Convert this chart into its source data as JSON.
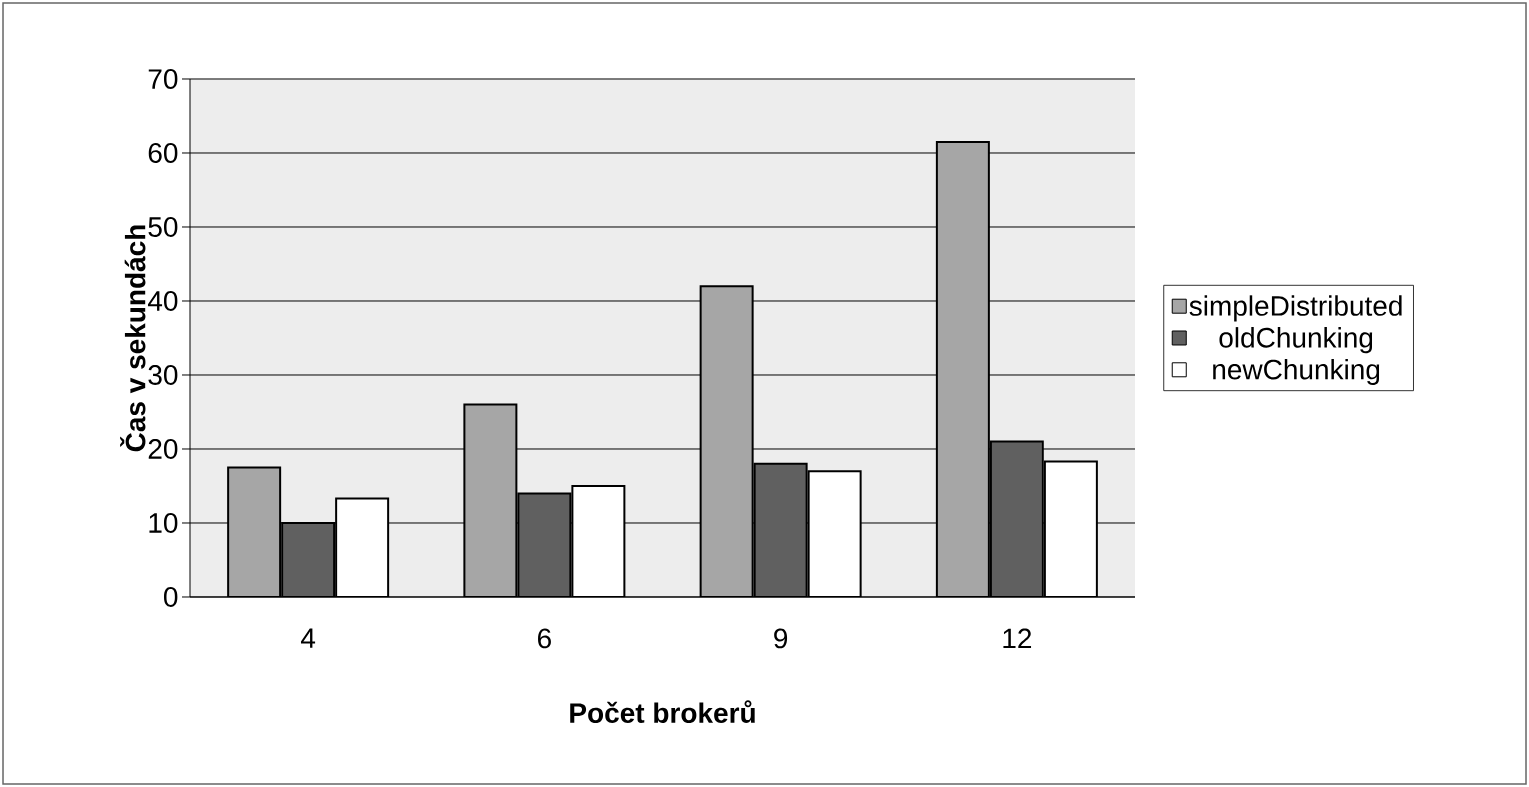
{
  "chart_data": {
    "type": "bar",
    "xlabel": "Počet brokerů",
    "ylabel": "Čas v sekundách",
    "categories": [
      "4",
      "6",
      "9",
      "12"
    ],
    "series": [
      {
        "name": "simpleDistributed",
        "color": "#a6a6a6",
        "values": [
          17.5,
          26,
          42,
          61.5
        ]
      },
      {
        "name": "oldChunking",
        "color": "#606060",
        "values": [
          10,
          14,
          18,
          21
        ]
      },
      {
        "name": "newChunking",
        "color": "#ffffff",
        "values": [
          13.3,
          15,
          17,
          18.3
        ]
      }
    ],
    "ylim": [
      0,
      70
    ],
    "yticks": [
      0,
      10,
      20,
      30,
      40,
      50,
      60,
      70
    ],
    "grid": "y",
    "legend": "right"
  }
}
